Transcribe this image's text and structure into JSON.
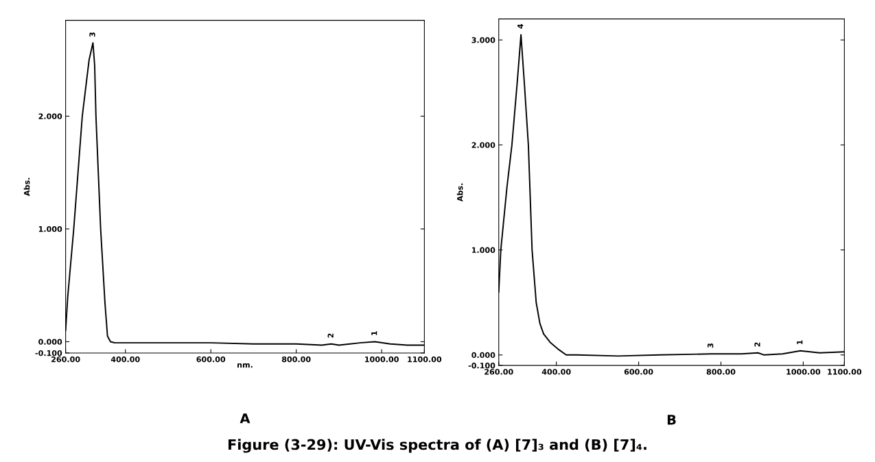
{
  "chart_data": [
    {
      "type": "line",
      "title": "A",
      "xlabel": "nm.",
      "ylabel": "Abs.",
      "series": [
        {
          "color": "#000000",
          "x": [
            260,
            265,
            279,
            299,
            315,
            324,
            328,
            331,
            342,
            352,
            358,
            365,
            375,
            400,
            500,
            600,
            700,
            800,
            860,
            882,
            900,
            950,
            984,
            1020,
            1060,
            1100
          ],
          "values": [
            0.1,
            0.4,
            1.0,
            2.0,
            2.5,
            2.65,
            2.45,
            2.0,
            1.0,
            0.35,
            0.05,
            0.0,
            -0.01,
            -0.01,
            -0.01,
            -0.01,
            -0.02,
            -0.02,
            -0.03,
            -0.02,
            -0.03,
            -0.01,
            0.0,
            -0.02,
            -0.03,
            -0.03
          ]
        }
      ],
      "xlim": [
        260,
        1100
      ],
      "ylim": [
        -0.1,
        2.85
      ],
      "xticks": [
        {
          "value": 260,
          "label": "260.00"
        },
        {
          "value": 400,
          "label": "400.00"
        },
        {
          "value": 600,
          "label": "600.00"
        },
        {
          "value": 800,
          "label": "800.00"
        },
        {
          "value": 1000,
          "label": "1000.00"
        },
        {
          "value": 1100,
          "label": "1100.00"
        }
      ],
      "yticks": [
        {
          "value": -0.1,
          "label": "-0.100"
        },
        {
          "value": 0,
          "label": "0.000"
        },
        {
          "value": 1,
          "label": "1.000"
        },
        {
          "value": 2,
          "label": "2.000"
        }
      ],
      "annotations": [
        {
          "text": "3",
          "x": 324,
          "y": 2.65
        },
        {
          "text": "2",
          "x": 882,
          "y": -0.02
        },
        {
          "text": "1",
          "x": 984,
          "y": 0.0
        },
        "Figure (3-29): UV-Vis spectra of (A) [7]₃ and (B) [7]₄."
      ]
    },
    {
      "type": "line",
      "title": "B",
      "ylabel": "Abs.",
      "series": [
        {
          "color": "#000000",
          "x": [
            260,
            265,
            280,
            292,
            305,
            314,
            322,
            332,
            341,
            351,
            360,
            369,
            385,
            406,
            424,
            450,
            550,
            650,
            776,
            850,
            890,
            905,
            950,
            993,
            1040,
            1100
          ],
          "values": [
            0.6,
            1.0,
            1.6,
            2.0,
            2.6,
            3.05,
            2.6,
            2.0,
            1.0,
            0.5,
            0.3,
            0.2,
            0.12,
            0.05,
            0.0,
            0.0,
            -0.01,
            0.0,
            0.01,
            0.01,
            0.02,
            0.0,
            0.01,
            0.04,
            0.02,
            0.03
          ]
        }
      ],
      "xlim": [
        260,
        1100
      ],
      "ylim": [
        -0.1,
        3.2
      ],
      "xticks": [
        {
          "value": 260,
          "label": "260.00"
        },
        {
          "value": 400,
          "label": "400.00"
        },
        {
          "value": 600,
          "label": "600.00"
        },
        {
          "value": 800,
          "label": "800.00"
        },
        {
          "value": 1000,
          "label": "1000.00"
        },
        {
          "value": 1100,
          "label": "1100.00"
        }
      ],
      "yticks": [
        {
          "value": -0.1,
          "label": "-0.100"
        },
        {
          "value": 0,
          "label": "0.000"
        },
        {
          "value": 1,
          "label": "1.000"
        },
        {
          "value": 2,
          "label": "2.000"
        },
        {
          "value": 3,
          "label": "3.000"
        }
      ],
      "annotations": [
        {
          "text": "4",
          "x": 314,
          "y": 3.05
        },
        {
          "text": "3",
          "x": 776,
          "y": 0.01
        },
        {
          "text": "2",
          "x": 890,
          "y": 0.02
        },
        {
          "text": "1",
          "x": 993,
          "y": 0.04
        }
      ]
    }
  ]
}
